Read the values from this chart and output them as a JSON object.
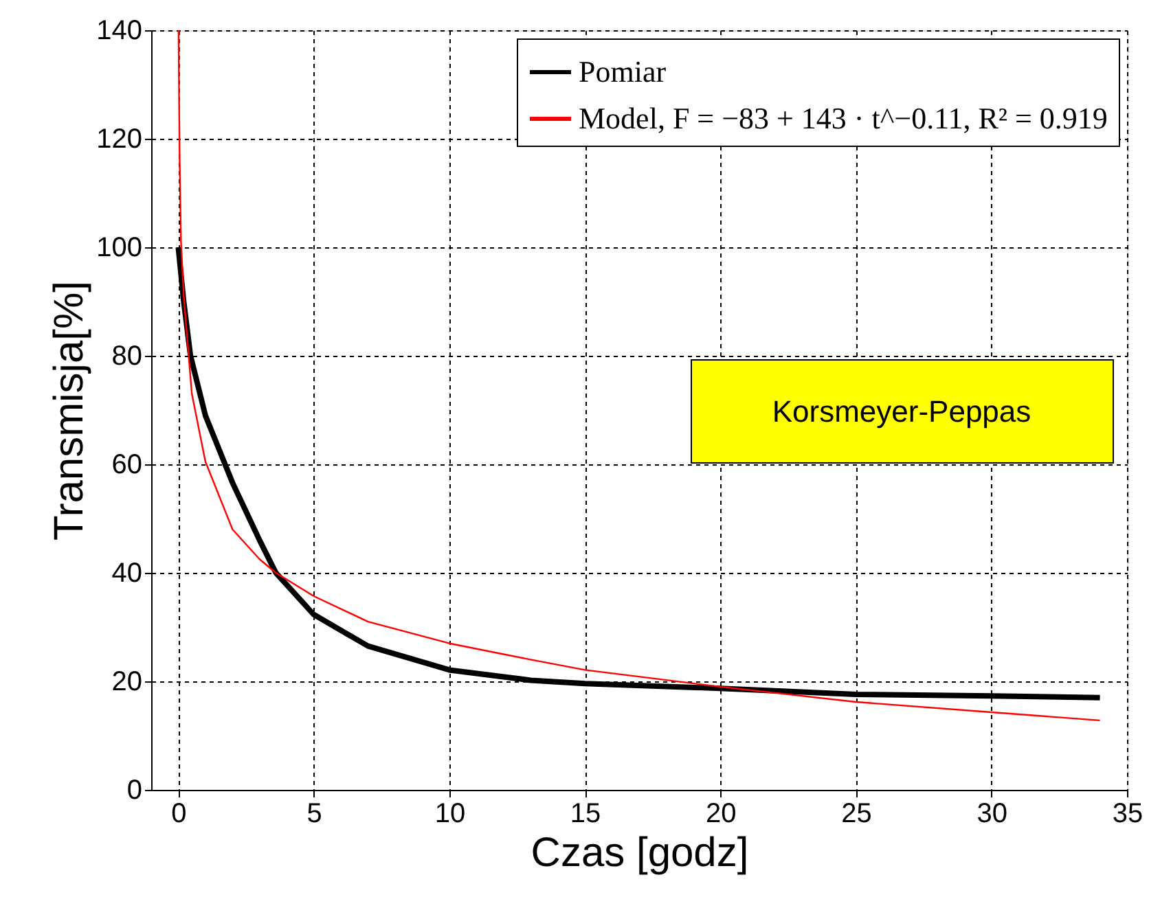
{
  "chart_data": {
    "type": "line",
    "xlabel": "Czas [godz]",
    "ylabel": "Transmisja[%]",
    "xlim": [
      -1,
      35
    ],
    "xticks": [
      0,
      5,
      10,
      15,
      20,
      25,
      30,
      35
    ],
    "ylim": [
      0,
      140
    ],
    "yticks": [
      0,
      20,
      40,
      60,
      80,
      100,
      120,
      140
    ],
    "grid": true,
    "legend": "top right",
    "line_style": "solid",
    "marker": "none",
    "annotations": [
      "Korsmeyer-Peppas"
    ],
    "series": [
      {
        "name": "Pomiar",
        "color": "#000000",
        "x": [
          0,
          0.2,
          0.45,
          1,
          2,
          3,
          3.6,
          5,
          7,
          10,
          13,
          15,
          20,
          25,
          30,
          34
        ],
        "values": [
          100,
          90,
          80,
          69,
          56.6,
          46,
          40,
          32.3,
          26.5,
          22.1,
          20.2,
          19.6,
          18.7,
          17.6,
          17.3,
          17.0
        ]
      },
      {
        "name": "Model, F = −83 + 143 · t^−0.11, R² = 0.919",
        "color": "#ff0000",
        "x": [
          0.01,
          0.03,
          0.05,
          0.1,
          0.2,
          0.5,
          1,
          2,
          3,
          3.6,
          5,
          7,
          10,
          13,
          15,
          20,
          25,
          30,
          34
        ],
        "values": [
          140,
          127,
          116,
          101,
          91,
          73,
          60.5,
          48,
          42.5,
          40,
          35.7,
          31,
          27,
          24,
          22.1,
          19,
          16.2,
          14.3,
          12.8
        ]
      }
    ]
  }
}
